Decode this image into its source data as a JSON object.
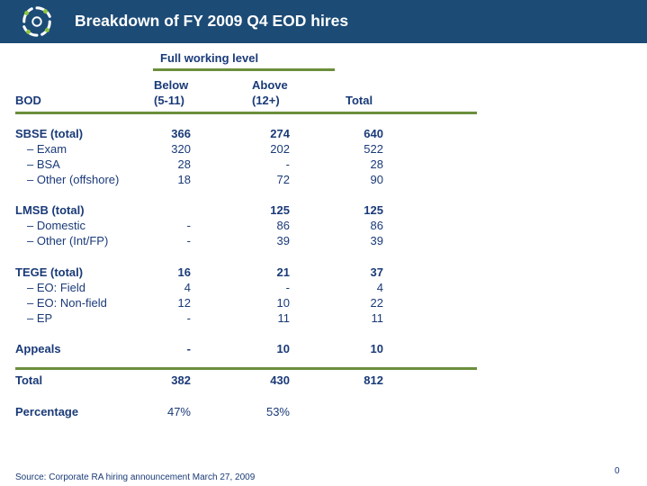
{
  "header": {
    "title": "Breakdown of FY 2009 Q4 EOD hires"
  },
  "table": {
    "group_header": "Full working level",
    "col_headers": {
      "bod": "BOD",
      "below_line1": "Below",
      "below_line2": "(5-11)",
      "above_line1": "Above",
      "above_line2": "(12+)",
      "total": "Total"
    },
    "rows": [
      {
        "label": "SBSE (total)",
        "below": "366",
        "above": "274",
        "total": "640"
      },
      {
        "label": "– Exam",
        "below": "320",
        "above": "202",
        "total": "522"
      },
      {
        "label": "– BSA",
        "below": "28",
        "above": "-",
        "total": "28"
      },
      {
        "label": "– Other (offshore)",
        "below": "18",
        "above": "72",
        "total": "90"
      },
      {
        "label": "LMSB (total)",
        "below": "",
        "above": "125",
        "total": "125"
      },
      {
        "label": "– Domestic",
        "below": "-",
        "above": "86",
        "total": "86"
      },
      {
        "label": "– Other (Int/FP)",
        "below": "-",
        "above": "39",
        "total": "39"
      },
      {
        "label": "TEGE (total)",
        "below": "16",
        "above": "21",
        "total": "37"
      },
      {
        "label": "– EO: Field",
        "below": "4",
        "above": "-",
        "total": "4"
      },
      {
        "label": "– EO: Non-field",
        "below": "12",
        "above": "10",
        "total": "22"
      },
      {
        "label": "– EP",
        "below": "-",
        "above": "11",
        "total": "11"
      },
      {
        "label": "Appeals",
        "below": "-",
        "above": "10",
        "total": "10"
      }
    ],
    "total_row": {
      "label": "Total",
      "below": "382",
      "above": "430",
      "total": "812"
    },
    "percentage_row": {
      "label": "Percentage",
      "below": "47%",
      "above": "53%"
    }
  },
  "footer": {
    "source": "Source: Corporate RA hiring announcement March 27, 2009",
    "page_number": "0"
  },
  "colors": {
    "header_bg": "#1c4b76",
    "text": "#1a3a78",
    "rule": "#6b8f3c"
  }
}
